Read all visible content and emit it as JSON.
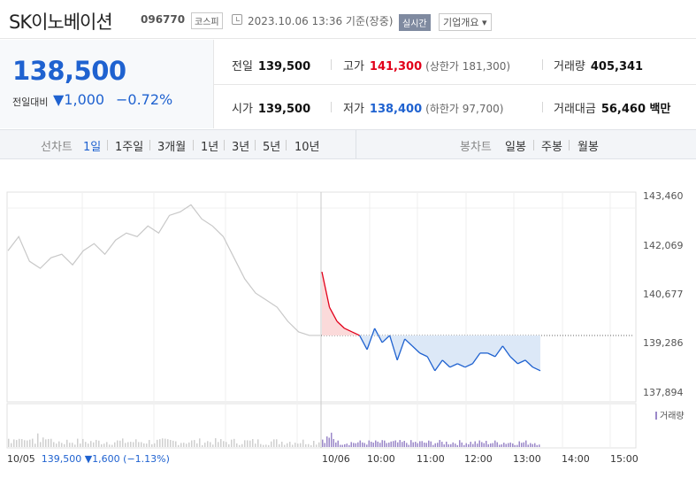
{
  "header": {
    "name": "SK이노베이션",
    "code": "096770",
    "market": "코스피",
    "time": "2023.10.06 13:36 기준(장중)",
    "realtime": "실시간",
    "company_info": "기업개요 ▾"
  },
  "quote": {
    "price": "138,500",
    "change_label": "전일대비",
    "change_value": "▼1,000",
    "change_pct": "−0.72%",
    "prev_close": {
      "label": "전일",
      "value": "139,500"
    },
    "open": {
      "label": "시가",
      "value": "139,500"
    },
    "high": {
      "label": "고가",
      "value": "141,300",
      "limit_label": "(상한가 181,300)"
    },
    "low": {
      "label": "저가",
      "value": "138,400",
      "limit_label": "(하한가 97,700)"
    },
    "volume": {
      "label": "거래량",
      "value": "405,341"
    },
    "amount": {
      "label": "거래대금",
      "value": "56,460 백만"
    }
  },
  "tabs": {
    "line_label": "선차트",
    "line": [
      "1일",
      "1주일",
      "3개월",
      "1년",
      "3년",
      "5년",
      "10년"
    ],
    "candle_label": "봉차트",
    "candle": [
      "일봉",
      "주봉",
      "월봉"
    ]
  },
  "chart_data": {
    "type": "line",
    "y_ticks": [
      "143,460",
      "142,069",
      "140,677",
      "139,286",
      "137,894"
    ],
    "ylim": [
      137894,
      143460
    ],
    "x_ticks": [
      "10/06",
      "10:00",
      "11:00",
      "12:00",
      "13:00",
      "14:00",
      "15:00"
    ],
    "reference_price": 139500,
    "volume_label": "거래량",
    "prev_day_summary": {
      "date": "10/05",
      "price": "139,500",
      "change": "▼1,600",
      "pct": "(−1.13%)"
    },
    "prev_day_series": [
      141900,
      142300,
      141600,
      141400,
      141700,
      141800,
      141500,
      141900,
      142100,
      141800,
      142200,
      142400,
      142300,
      142600,
      142400,
      142900,
      143000,
      143200,
      142800,
      142600,
      142300,
      141700,
      141100,
      140700,
      140500,
      140300,
      139900,
      139600,
      139500,
      139500
    ],
    "today_series": [
      141300,
      140300,
      139900,
      139700,
      139600,
      139500,
      139100,
      139700,
      139300,
      139500,
      138800,
      139400,
      139200,
      139000,
      138900,
      138500,
      138800,
      138600,
      138700,
      138600,
      138700,
      139000,
      139000,
      138900,
      139200,
      138900,
      138700,
      138800,
      138600,
      138500
    ]
  },
  "colors": {
    "up": "#e2001a",
    "down": "#1f62d0",
    "prev_line": "#c8c8c8",
    "volume": "#9b88c9"
  }
}
